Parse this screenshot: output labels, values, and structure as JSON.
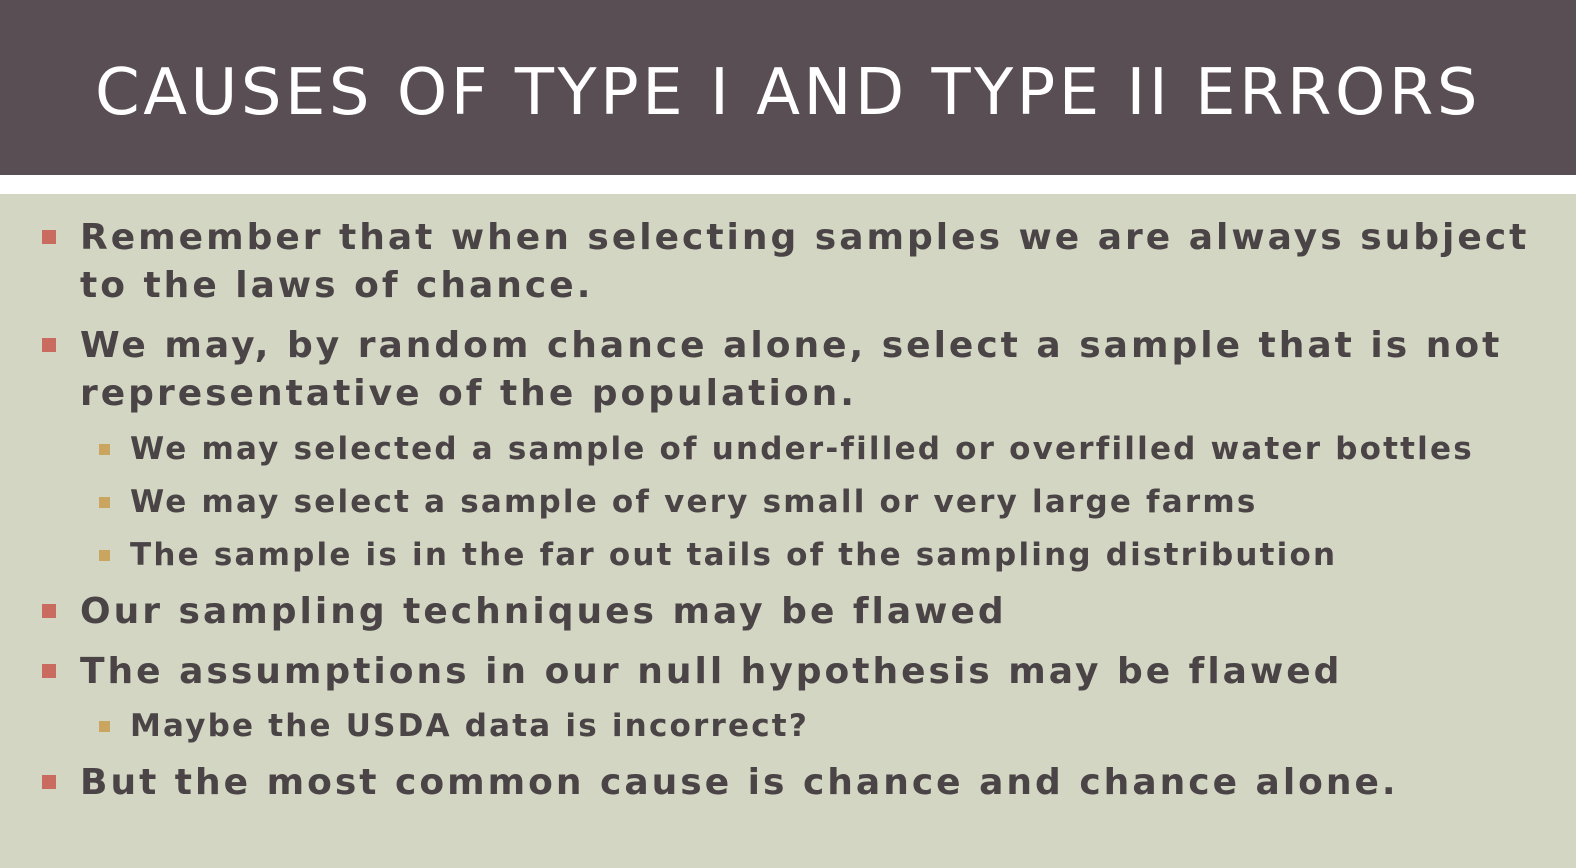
{
  "slide": {
    "title": "CAUSES OF TYPE I AND TYPE II ERRORS",
    "colors": {
      "title_bar": "#594e53",
      "background": "#d3d6c3",
      "text": "#4a4446",
      "bullet_level1": "#c96b5e",
      "bullet_level2": "#c9a560"
    },
    "bullets": [
      {
        "level": 1,
        "lines": [
          "Remember that when selecting  samples we are always subject",
          "to the laws of chance."
        ]
      },
      {
        "level": 1,
        "lines": [
          "We may, by random chance alone, select a sample that is not",
          "representative of the population."
        ]
      },
      {
        "level": 2,
        "lines": [
          "We may selected a sample of under-filled or overfilled water bottles"
        ]
      },
      {
        "level": 2,
        "lines": [
          "We may select a sample of very small or very large farms"
        ]
      },
      {
        "level": 2,
        "lines": [
          "The sample is in the far out tails of the sampling distribution"
        ]
      },
      {
        "level": 1,
        "lines": [
          "Our sampling techniques may be flawed"
        ]
      },
      {
        "level": 1,
        "lines": [
          "The assumptions in our null hypothesis may be flawed"
        ]
      },
      {
        "level": 2,
        "lines": [
          "Maybe the USDA data is incorrect?"
        ]
      },
      {
        "level": 1,
        "lines": [
          "But the most common cause is chance and chance alone."
        ]
      }
    ]
  }
}
